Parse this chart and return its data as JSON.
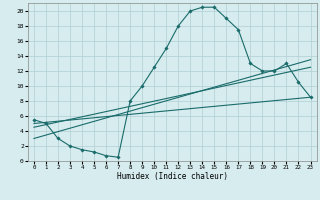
{
  "xlabel": "Humidex (Indice chaleur)",
  "background_color": "#d6ecee",
  "grid_color": "#b0cfd4",
  "line_color": "#1a6b6b",
  "xlim": [
    -0.5,
    23.5
  ],
  "ylim": [
    0,
    21
  ],
  "xticks": [
    0,
    1,
    2,
    3,
    4,
    5,
    6,
    7,
    8,
    9,
    10,
    11,
    12,
    13,
    14,
    15,
    16,
    17,
    18,
    19,
    20,
    21,
    22,
    23
  ],
  "yticks": [
    0,
    2,
    4,
    6,
    8,
    10,
    12,
    14,
    16,
    18,
    20
  ],
  "main_x": [
    0,
    1,
    2,
    3,
    4,
    5,
    6,
    7,
    8,
    9,
    10,
    11,
    12,
    13,
    14,
    15,
    16,
    17,
    18,
    19,
    20,
    21,
    22,
    23
  ],
  "main_y": [
    5.5,
    5,
    3,
    2,
    1.5,
    1.2,
    0.7,
    0.5,
    8.0,
    10.0,
    12.5,
    15,
    18,
    20,
    20.5,
    20.5,
    19,
    17.5,
    13,
    12,
    12,
    13,
    10.5,
    8.5
  ],
  "line2_x": [
    0,
    23
  ],
  "line2_y": [
    5.0,
    8.5
  ],
  "line3_x": [
    0,
    23
  ],
  "line3_y": [
    4.5,
    12.5
  ],
  "line4_x": [
    0,
    23
  ],
  "line4_y": [
    3.0,
    13.5
  ]
}
